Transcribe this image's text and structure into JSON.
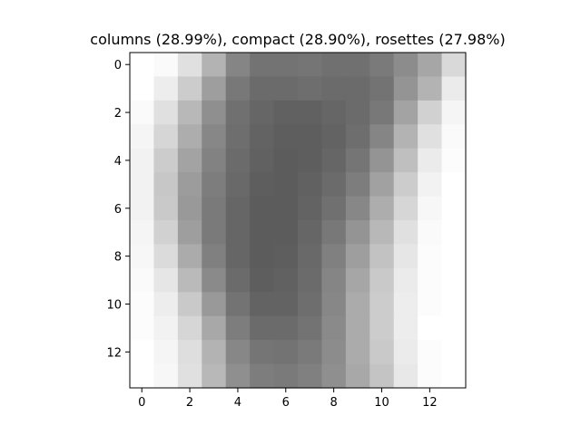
{
  "chart_data": {
    "type": "heatmap",
    "title": "columns (28.99%), compact (28.90%), rosettes (27.98%)",
    "colormap": "gray_r",
    "x_ticks": [
      0,
      2,
      4,
      6,
      8,
      10,
      12
    ],
    "y_ticks": [
      0,
      2,
      4,
      6,
      8,
      10,
      12
    ],
    "xlim": [
      -0.5,
      13.5
    ],
    "ylim": [
      13.5,
      -0.5
    ],
    "vmin": 0,
    "vmax": 1,
    "values": [
      [
        0.0,
        0.02,
        0.12,
        0.3,
        0.48,
        0.55,
        0.55,
        0.54,
        0.56,
        0.56,
        0.52,
        0.45,
        0.35,
        0.15
      ],
      [
        0.0,
        0.07,
        0.2,
        0.38,
        0.53,
        0.58,
        0.58,
        0.57,
        0.58,
        0.58,
        0.55,
        0.42,
        0.3,
        0.08
      ],
      [
        0.02,
        0.12,
        0.28,
        0.44,
        0.56,
        0.6,
        0.62,
        0.62,
        0.6,
        0.58,
        0.53,
        0.36,
        0.18,
        0.04
      ],
      [
        0.04,
        0.16,
        0.32,
        0.47,
        0.57,
        0.61,
        0.63,
        0.63,
        0.61,
        0.57,
        0.48,
        0.3,
        0.12,
        0.02
      ],
      [
        0.05,
        0.2,
        0.36,
        0.49,
        0.58,
        0.62,
        0.64,
        0.63,
        0.6,
        0.54,
        0.42,
        0.25,
        0.08,
        0.01
      ],
      [
        0.05,
        0.22,
        0.39,
        0.51,
        0.59,
        0.63,
        0.64,
        0.62,
        0.58,
        0.51,
        0.37,
        0.2,
        0.05,
        0.0
      ],
      [
        0.05,
        0.21,
        0.4,
        0.52,
        0.6,
        0.64,
        0.64,
        0.61,
        0.56,
        0.47,
        0.32,
        0.16,
        0.03,
        0.0
      ],
      [
        0.04,
        0.18,
        0.38,
        0.52,
        0.6,
        0.64,
        0.64,
        0.6,
        0.53,
        0.42,
        0.28,
        0.12,
        0.02,
        0.0
      ],
      [
        0.03,
        0.14,
        0.33,
        0.5,
        0.6,
        0.64,
        0.63,
        0.59,
        0.5,
        0.38,
        0.24,
        0.1,
        0.01,
        0.0
      ],
      [
        0.02,
        0.1,
        0.27,
        0.46,
        0.58,
        0.63,
        0.62,
        0.58,
        0.48,
        0.35,
        0.21,
        0.08,
        0.01,
        0.0
      ],
      [
        0.01,
        0.07,
        0.21,
        0.4,
        0.55,
        0.61,
        0.61,
        0.57,
        0.47,
        0.33,
        0.2,
        0.07,
        0.01,
        0.0
      ],
      [
        0.01,
        0.05,
        0.16,
        0.34,
        0.51,
        0.58,
        0.58,
        0.55,
        0.46,
        0.33,
        0.2,
        0.07,
        0.0,
        0.0
      ],
      [
        0.0,
        0.04,
        0.13,
        0.3,
        0.47,
        0.54,
        0.55,
        0.52,
        0.45,
        0.33,
        0.21,
        0.08,
        0.01,
        0.0
      ],
      [
        0.0,
        0.03,
        0.12,
        0.28,
        0.44,
        0.51,
        0.52,
        0.5,
        0.44,
        0.34,
        0.23,
        0.09,
        0.01,
        0.0
      ]
    ]
  }
}
